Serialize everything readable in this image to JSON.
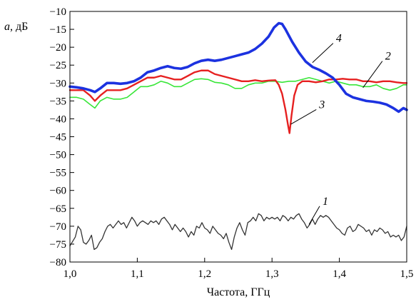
{
  "chart_data": {
    "type": "line",
    "title": "",
    "xlabel": "Частота, ГГц",
    "ylabel_italic": "a",
    "ylabel_rest": ", дБ",
    "xlim": [
      1.0,
      1.5
    ],
    "ylim": [
      -80,
      -10
    ],
    "xticks": [
      1.0,
      1.1,
      1.2,
      1.3,
      1.4,
      1.5
    ],
    "xtick_labels": [
      "1,0",
      "1,1",
      "1,2",
      "1,3",
      "1,4",
      "1,5"
    ],
    "yticks": [
      -10,
      -15,
      -20,
      -25,
      -30,
      -35,
      -40,
      -45,
      -50,
      -55,
      -60,
      -65,
      -70,
      -75,
      -80
    ],
    "ytick_labels": [
      "−10",
      "−15",
      "−20",
      "−25",
      "−30",
      "−35",
      "−40",
      "−45",
      "−50",
      "−55",
      "−60",
      "−65",
      "−70",
      "−75",
      "−80"
    ],
    "grid": false,
    "legend": "none",
    "series": [
      {
        "label": "1",
        "color": "#333333",
        "points": [
          [
            1.0,
            -75.5
          ],
          [
            1.008,
            -73.0
          ],
          [
            1.012,
            -70.0
          ],
          [
            1.016,
            -71.0
          ],
          [
            1.02,
            -74.5
          ],
          [
            1.024,
            -75.0
          ],
          [
            1.028,
            -74.0
          ],
          [
            1.032,
            -72.5
          ],
          [
            1.036,
            -76.5
          ],
          [
            1.04,
            -76.0
          ],
          [
            1.044,
            -74.5
          ],
          [
            1.048,
            -73.5
          ],
          [
            1.052,
            -71.5
          ],
          [
            1.056,
            -70.0
          ],
          [
            1.06,
            -69.5
          ],
          [
            1.064,
            -70.5
          ],
          [
            1.068,
            -69.5
          ],
          [
            1.072,
            -68.5
          ],
          [
            1.076,
            -69.5
          ],
          [
            1.08,
            -69.0
          ],
          [
            1.084,
            -70.5
          ],
          [
            1.088,
            -69.0
          ],
          [
            1.092,
            -67.5
          ],
          [
            1.096,
            -68.5
          ],
          [
            1.1,
            -70.0
          ],
          [
            1.104,
            -69.0
          ],
          [
            1.108,
            -68.5
          ],
          [
            1.112,
            -69.0
          ],
          [
            1.116,
            -69.5
          ],
          [
            1.12,
            -68.5
          ],
          [
            1.124,
            -69.0
          ],
          [
            1.128,
            -68.5
          ],
          [
            1.132,
            -69.5
          ],
          [
            1.136,
            -68.0
          ],
          [
            1.14,
            -67.5
          ],
          [
            1.144,
            -68.5
          ],
          [
            1.148,
            -69.5
          ],
          [
            1.152,
            -71.0
          ],
          [
            1.156,
            -69.5
          ],
          [
            1.16,
            -70.5
          ],
          [
            1.164,
            -71.5
          ],
          [
            1.168,
            -70.5
          ],
          [
            1.172,
            -71.5
          ],
          [
            1.176,
            -73.0
          ],
          [
            1.18,
            -71.5
          ],
          [
            1.184,
            -72.5
          ],
          [
            1.188,
            -70.0
          ],
          [
            1.192,
            -70.5
          ],
          [
            1.196,
            -69.0
          ],
          [
            1.2,
            -70.5
          ],
          [
            1.204,
            -71.0
          ],
          [
            1.208,
            -72.0
          ],
          [
            1.212,
            -70.0
          ],
          [
            1.216,
            -71.0
          ],
          [
            1.22,
            -72.0
          ],
          [
            1.224,
            -72.5
          ],
          [
            1.228,
            -73.5
          ],
          [
            1.232,
            -72.0
          ],
          [
            1.236,
            -74.5
          ],
          [
            1.24,
            -76.5
          ],
          [
            1.244,
            -73.0
          ],
          [
            1.248,
            -70.5
          ],
          [
            1.252,
            -69.0
          ],
          [
            1.256,
            -71.0
          ],
          [
            1.26,
            -72.5
          ],
          [
            1.264,
            -69.0
          ],
          [
            1.268,
            -68.5
          ],
          [
            1.272,
            -67.5
          ],
          [
            1.276,
            -68.5
          ],
          [
            1.28,
            -66.5
          ],
          [
            1.284,
            -67.0
          ],
          [
            1.288,
            -68.5
          ],
          [
            1.292,
            -67.5
          ],
          [
            1.296,
            -68.0
          ],
          [
            1.3,
            -67.5
          ],
          [
            1.304,
            -68.0
          ],
          [
            1.308,
            -67.5
          ],
          [
            1.312,
            -68.5
          ],
          [
            1.316,
            -67.0
          ],
          [
            1.32,
            -67.5
          ],
          [
            1.324,
            -68.5
          ],
          [
            1.328,
            -67.5
          ],
          [
            1.332,
            -68.0
          ],
          [
            1.336,
            -67.0
          ],
          [
            1.34,
            -66.5
          ],
          [
            1.344,
            -68.0
          ],
          [
            1.348,
            -69.0
          ],
          [
            1.352,
            -70.5
          ],
          [
            1.356,
            -69.5
          ],
          [
            1.36,
            -68.0
          ],
          [
            1.364,
            -69.5
          ],
          [
            1.368,
            -68.0
          ],
          [
            1.372,
            -67.0
          ],
          [
            1.376,
            -67.5
          ],
          [
            1.38,
            -67.0
          ],
          [
            1.384,
            -67.5
          ],
          [
            1.388,
            -68.5
          ],
          [
            1.392,
            -69.5
          ],
          [
            1.396,
            -70.5
          ],
          [
            1.4,
            -71.0
          ],
          [
            1.404,
            -72.0
          ],
          [
            1.408,
            -72.5
          ],
          [
            1.412,
            -70.5
          ],
          [
            1.416,
            -70.0
          ],
          [
            1.42,
            -71.5
          ],
          [
            1.424,
            -71.0
          ],
          [
            1.428,
            -69.5
          ],
          [
            1.432,
            -70.0
          ],
          [
            1.436,
            -70.5
          ],
          [
            1.44,
            -71.5
          ],
          [
            1.444,
            -71.0
          ],
          [
            1.448,
            -72.5
          ],
          [
            1.452,
            -71.0
          ],
          [
            1.456,
            -71.5
          ],
          [
            1.46,
            -70.5
          ],
          [
            1.464,
            -71.0
          ],
          [
            1.468,
            -72.0
          ],
          [
            1.472,
            -71.5
          ],
          [
            1.476,
            -73.0
          ],
          [
            1.48,
            -72.5
          ],
          [
            1.484,
            -73.0
          ],
          [
            1.488,
            -72.5
          ],
          [
            1.492,
            -74.0
          ],
          [
            1.496,
            -73.0
          ],
          [
            1.5,
            -70.0
          ]
        ]
      },
      {
        "label": "2",
        "color": "#39e639",
        "points": [
          [
            1.0,
            -34.0
          ],
          [
            1.01,
            -34.0
          ],
          [
            1.02,
            -34.5
          ],
          [
            1.03,
            -36.0
          ],
          [
            1.037,
            -37.0
          ],
          [
            1.045,
            -35.0
          ],
          [
            1.055,
            -34.0
          ],
          [
            1.065,
            -34.5
          ],
          [
            1.075,
            -34.5
          ],
          [
            1.085,
            -34.0
          ],
          [
            1.095,
            -32.5
          ],
          [
            1.105,
            -31.0
          ],
          [
            1.115,
            -31.0
          ],
          [
            1.125,
            -30.5
          ],
          [
            1.135,
            -29.5
          ],
          [
            1.145,
            -30.0
          ],
          [
            1.155,
            -31.0
          ],
          [
            1.165,
            -31.0
          ],
          [
            1.175,
            -30.0
          ],
          [
            1.185,
            -29.0
          ],
          [
            1.195,
            -28.8
          ],
          [
            1.205,
            -29.0
          ],
          [
            1.215,
            -29.8
          ],
          [
            1.225,
            -30.0
          ],
          [
            1.235,
            -30.5
          ],
          [
            1.245,
            -31.5
          ],
          [
            1.255,
            -31.5
          ],
          [
            1.265,
            -30.5
          ],
          [
            1.275,
            -30.0
          ],
          [
            1.285,
            -30.0
          ],
          [
            1.295,
            -29.5
          ],
          [
            1.305,
            -29.5
          ],
          [
            1.315,
            -29.8
          ],
          [
            1.325,
            -29.5
          ],
          [
            1.335,
            -29.5
          ],
          [
            1.345,
            -29.0
          ],
          [
            1.355,
            -28.5
          ],
          [
            1.365,
            -29.0
          ],
          [
            1.375,
            -29.5
          ],
          [
            1.385,
            -30.0
          ],
          [
            1.395,
            -29.5
          ],
          [
            1.405,
            -30.0
          ],
          [
            1.415,
            -30.5
          ],
          [
            1.425,
            -30.5
          ],
          [
            1.435,
            -31.0
          ],
          [
            1.445,
            -31.0
          ],
          [
            1.455,
            -30.5
          ],
          [
            1.465,
            -31.5
          ],
          [
            1.475,
            -32.0
          ],
          [
            1.485,
            -31.5
          ],
          [
            1.495,
            -30.5
          ],
          [
            1.5,
            -30.5
          ]
        ]
      },
      {
        "label": "3",
        "color": "#e62020",
        "points": [
          [
            1.0,
            -32.0
          ],
          [
            1.01,
            -32.0
          ],
          [
            1.02,
            -32.0
          ],
          [
            1.03,
            -33.5
          ],
          [
            1.037,
            -35.0
          ],
          [
            1.045,
            -33.5
          ],
          [
            1.055,
            -32.0
          ],
          [
            1.065,
            -32.0
          ],
          [
            1.075,
            -32.0
          ],
          [
            1.085,
            -31.5
          ],
          [
            1.095,
            -30.5
          ],
          [
            1.105,
            -29.5
          ],
          [
            1.115,
            -28.5
          ],
          [
            1.125,
            -28.5
          ],
          [
            1.135,
            -28.0
          ],
          [
            1.145,
            -28.5
          ],
          [
            1.155,
            -29.0
          ],
          [
            1.165,
            -29.0
          ],
          [
            1.175,
            -28.0
          ],
          [
            1.185,
            -27.0
          ],
          [
            1.195,
            -26.5
          ],
          [
            1.205,
            -26.5
          ],
          [
            1.215,
            -27.5
          ],
          [
            1.225,
            -28.0
          ],
          [
            1.235,
            -28.5
          ],
          [
            1.245,
            -29.0
          ],
          [
            1.255,
            -29.5
          ],
          [
            1.265,
            -29.5
          ],
          [
            1.275,
            -29.2
          ],
          [
            1.285,
            -29.5
          ],
          [
            1.295,
            -29.3
          ],
          [
            1.305,
            -29.2
          ],
          [
            1.31,
            -30.5
          ],
          [
            1.315,
            -33.0
          ],
          [
            1.32,
            -37.5
          ],
          [
            1.324,
            -42.0
          ],
          [
            1.326,
            -44.0
          ],
          [
            1.329,
            -39.0
          ],
          [
            1.333,
            -33.5
          ],
          [
            1.338,
            -30.5
          ],
          [
            1.345,
            -29.5
          ],
          [
            1.355,
            -29.5
          ],
          [
            1.365,
            -29.8
          ],
          [
            1.375,
            -29.5
          ],
          [
            1.385,
            -29.0
          ],
          [
            1.395,
            -29.0
          ],
          [
            1.405,
            -28.8
          ],
          [
            1.415,
            -29.0
          ],
          [
            1.425,
            -29.0
          ],
          [
            1.435,
            -29.5
          ],
          [
            1.445,
            -29.5
          ],
          [
            1.455,
            -29.8
          ],
          [
            1.465,
            -29.5
          ],
          [
            1.475,
            -29.5
          ],
          [
            1.485,
            -29.8
          ],
          [
            1.495,
            -30.0
          ],
          [
            1.5,
            -30.0
          ]
        ]
      },
      {
        "label": "4",
        "color": "#1c32e0",
        "points": [
          [
            1.0,
            -31.0
          ],
          [
            1.01,
            -31.2
          ],
          [
            1.02,
            -31.5
          ],
          [
            1.03,
            -32.0
          ],
          [
            1.037,
            -32.5
          ],
          [
            1.045,
            -31.5
          ],
          [
            1.055,
            -30.0
          ],
          [
            1.065,
            -30.0
          ],
          [
            1.075,
            -30.2
          ],
          [
            1.085,
            -30.0
          ],
          [
            1.095,
            -29.5
          ],
          [
            1.105,
            -28.5
          ],
          [
            1.115,
            -27.0
          ],
          [
            1.125,
            -26.5
          ],
          [
            1.135,
            -25.8
          ],
          [
            1.145,
            -25.3
          ],
          [
            1.155,
            -25.8
          ],
          [
            1.165,
            -26.0
          ],
          [
            1.175,
            -25.5
          ],
          [
            1.185,
            -24.5
          ],
          [
            1.195,
            -23.8
          ],
          [
            1.205,
            -23.5
          ],
          [
            1.215,
            -23.8
          ],
          [
            1.225,
            -23.5
          ],
          [
            1.235,
            -23.0
          ],
          [
            1.245,
            -22.5
          ],
          [
            1.255,
            -22.0
          ],
          [
            1.265,
            -21.5
          ],
          [
            1.275,
            -20.5
          ],
          [
            1.285,
            -19.0
          ],
          [
            1.295,
            -17.0
          ],
          [
            1.303,
            -14.5
          ],
          [
            1.31,
            -13.3
          ],
          [
            1.315,
            -13.5
          ],
          [
            1.32,
            -15.0
          ],
          [
            1.33,
            -18.5
          ],
          [
            1.34,
            -21.5
          ],
          [
            1.35,
            -24.0
          ],
          [
            1.36,
            -25.5
          ],
          [
            1.37,
            -26.3
          ],
          [
            1.38,
            -27.3
          ],
          [
            1.39,
            -28.5
          ],
          [
            1.4,
            -30.5
          ],
          [
            1.41,
            -33.0
          ],
          [
            1.42,
            -34.0
          ],
          [
            1.43,
            -34.5
          ],
          [
            1.44,
            -35.0
          ],
          [
            1.45,
            -35.2
          ],
          [
            1.46,
            -35.5
          ],
          [
            1.47,
            -36.0
          ],
          [
            1.48,
            -37.0
          ],
          [
            1.488,
            -38.0
          ],
          [
            1.495,
            -37.0
          ],
          [
            1.5,
            -37.5
          ]
        ]
      }
    ],
    "annotations": [
      {
        "text": "1",
        "x": 1.375,
        "y": -64.0,
        "tip_x": 1.355,
        "tip_y": -69.5
      },
      {
        "text": "2",
        "x": 1.468,
        "y": -23.5,
        "tip_x": 1.435,
        "tip_y": -31.3
      },
      {
        "text": "3",
        "x": 1.37,
        "y": -37.0,
        "tip_x": 1.328,
        "tip_y": -41.5
      },
      {
        "text": "4",
        "x": 1.395,
        "y": -18.5,
        "tip_x": 1.36,
        "tip_y": -24.3
      }
    ]
  }
}
